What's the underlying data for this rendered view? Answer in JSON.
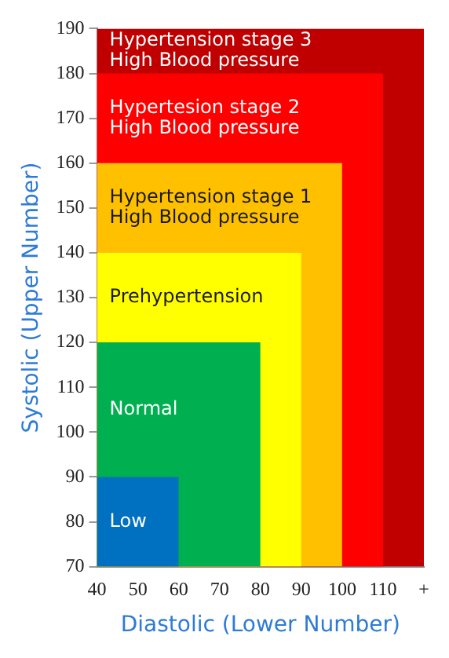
{
  "chart_data": {
    "type": "area",
    "xlabel": "Diastolic (Lower Number)",
    "ylabel": "Systolic (Upper Number)",
    "series": [
      {
        "name": "Low",
        "color": "#0070c0",
        "x": [
          40,
          60
        ],
        "values": [
          90,
          90
        ]
      },
      {
        "name": "Normal",
        "color": "#00b050",
        "x": [
          40,
          80
        ],
        "values": [
          120,
          120
        ]
      },
      {
        "name": "Prehypertension",
        "color": "#ffff00",
        "x": [
          40,
          90
        ],
        "values": [
          140,
          140
        ]
      },
      {
        "name": "Hypertension stage 1\nHigh Blood pressure",
        "color": "#ffc000",
        "x": [
          40,
          100
        ],
        "values": [
          160,
          160
        ]
      },
      {
        "name": "Hypertesion stage 2\nHigh Blood pressure",
        "color": "#ff0000",
        "x": [
          40,
          110
        ],
        "values": [
          180,
          180
        ]
      },
      {
        "name": "Hypertension stage 3\nHigh Blood pressure",
        "color": "#c00000",
        "x": [
          40,
          120
        ],
        "values": [
          190,
          190
        ]
      }
    ],
    "xlim": [
      40,
      120
    ],
    "xticks": [
      40,
      50,
      60,
      70,
      80,
      90,
      100,
      110,
      {
        "value": 120,
        "label": "+"
      }
    ],
    "ylim": [
      70,
      190
    ],
    "yticks": [
      70,
      80,
      90,
      100,
      110,
      120,
      130,
      140,
      150,
      160,
      170,
      180,
      190
    ],
    "grid": false,
    "legend": false
  }
}
